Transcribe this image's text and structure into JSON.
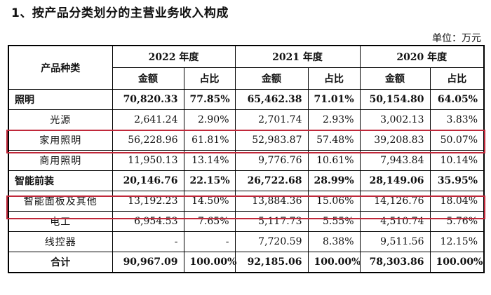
{
  "heading": "1、按产品分类划分的主营业务收入构成",
  "unit": "单位：万元",
  "table": {
    "category_header": "产品种类",
    "years": [
      "2022 年度",
      "2021 年度",
      "2020 年度"
    ],
    "amount_label": "金额",
    "ratio_label": "占比",
    "rows": [
      {
        "label": "照明",
        "values": [
          "70,820.33",
          "77.85%",
          "65,462.38",
          "71.01%",
          "50,154.80",
          "64.05%"
        ]
      },
      {
        "label": "光源",
        "values": [
          "2,641.24",
          "2.90%",
          "2,701.74",
          "2.93%",
          "3,002.13",
          "3.83%"
        ]
      },
      {
        "label": "家用照明",
        "values": [
          "56,228.96",
          "61.81%",
          "52,983.87",
          "57.48%",
          "39,208.83",
          "50.07%"
        ]
      },
      {
        "label": "商用照明",
        "values": [
          "11,950.13",
          "13.14%",
          "9,776.76",
          "10.61%",
          "7,943.84",
          "10.14%"
        ]
      },
      {
        "label": "智能前装",
        "values": [
          "20,146.76",
          "22.15%",
          "26,722.68",
          "28.99%",
          "28,149.06",
          "35.95%"
        ]
      },
      {
        "label": "智能面板及其他",
        "values": [
          "13,192.23",
          "14.50%",
          "13,884.36",
          "15.06%",
          "14,126.76",
          "18.04%"
        ]
      },
      {
        "label": "电工",
        "values": [
          "6,954.53",
          "7.65%",
          "5,117.73",
          "5.55%",
          "4,510.74",
          "5.76%"
        ]
      },
      {
        "label": "线控器",
        "values": [
          "-",
          "-",
          "7,720.59",
          "8.38%",
          "9,511.56",
          "12.15%"
        ]
      },
      {
        "label": "合计",
        "values": [
          "90,967.09",
          "100.00%",
          "92,185.06",
          "100.00%",
          "78,303.86",
          "100.00%"
        ]
      }
    ]
  },
  "highlight_color": "#c0283a"
}
